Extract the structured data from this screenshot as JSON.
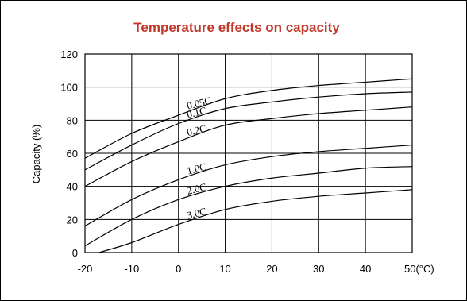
{
  "chart_data": {
    "type": "line",
    "title": "Temperature effects on capacity",
    "ylabel": "Capacity (%)",
    "xlabel": "",
    "x_unit_label": "50(°C)",
    "xlim": [
      -20,
      50
    ],
    "ylim": [
      0,
      120
    ],
    "x_ticks": [
      "-20",
      "-10",
      "0",
      "10",
      "20",
      "30",
      "40",
      "50(°C)"
    ],
    "y_ticks": [
      "0",
      "20",
      "40",
      "60",
      "80",
      "100",
      "120"
    ],
    "grid": true,
    "colors": {
      "title": "#c0392b",
      "lines": "#000000",
      "grid": "#000000"
    },
    "series": [
      {
        "name": "0.05C",
        "x": [
          -20,
          -10,
          0,
          10,
          20,
          30,
          40,
          50
        ],
        "y": [
          57,
          72,
          83,
          93,
          98,
          101,
          103,
          105
        ]
      },
      {
        "name": "0.1C",
        "x": [
          -20,
          -10,
          0,
          10,
          20,
          30,
          40,
          50
        ],
        "y": [
          50,
          65,
          78,
          87,
          91,
          94,
          96,
          97
        ]
      },
      {
        "name": "0.2C",
        "x": [
          -20,
          -10,
          0,
          10,
          20,
          30,
          40,
          50
        ],
        "y": [
          40,
          55,
          67,
          77,
          81,
          84,
          86,
          88
        ]
      },
      {
        "name": "1.0C",
        "x": [
          -20,
          -10,
          0,
          10,
          20,
          30,
          40,
          50
        ],
        "y": [
          16,
          32,
          44,
          53,
          58,
          61,
          63,
          65
        ]
      },
      {
        "name": "2.0C",
        "x": [
          -20,
          -10,
          0,
          10,
          20,
          30,
          40,
          50
        ],
        "y": [
          4,
          20,
          32,
          40,
          45,
          48,
          51,
          52
        ]
      },
      {
        "name": "3.0C",
        "x": [
          -17,
          -10,
          0,
          10,
          20,
          30,
          40,
          50
        ],
        "y": [
          0,
          6,
          17,
          26,
          31,
          34,
          36,
          38
        ]
      }
    ]
  }
}
